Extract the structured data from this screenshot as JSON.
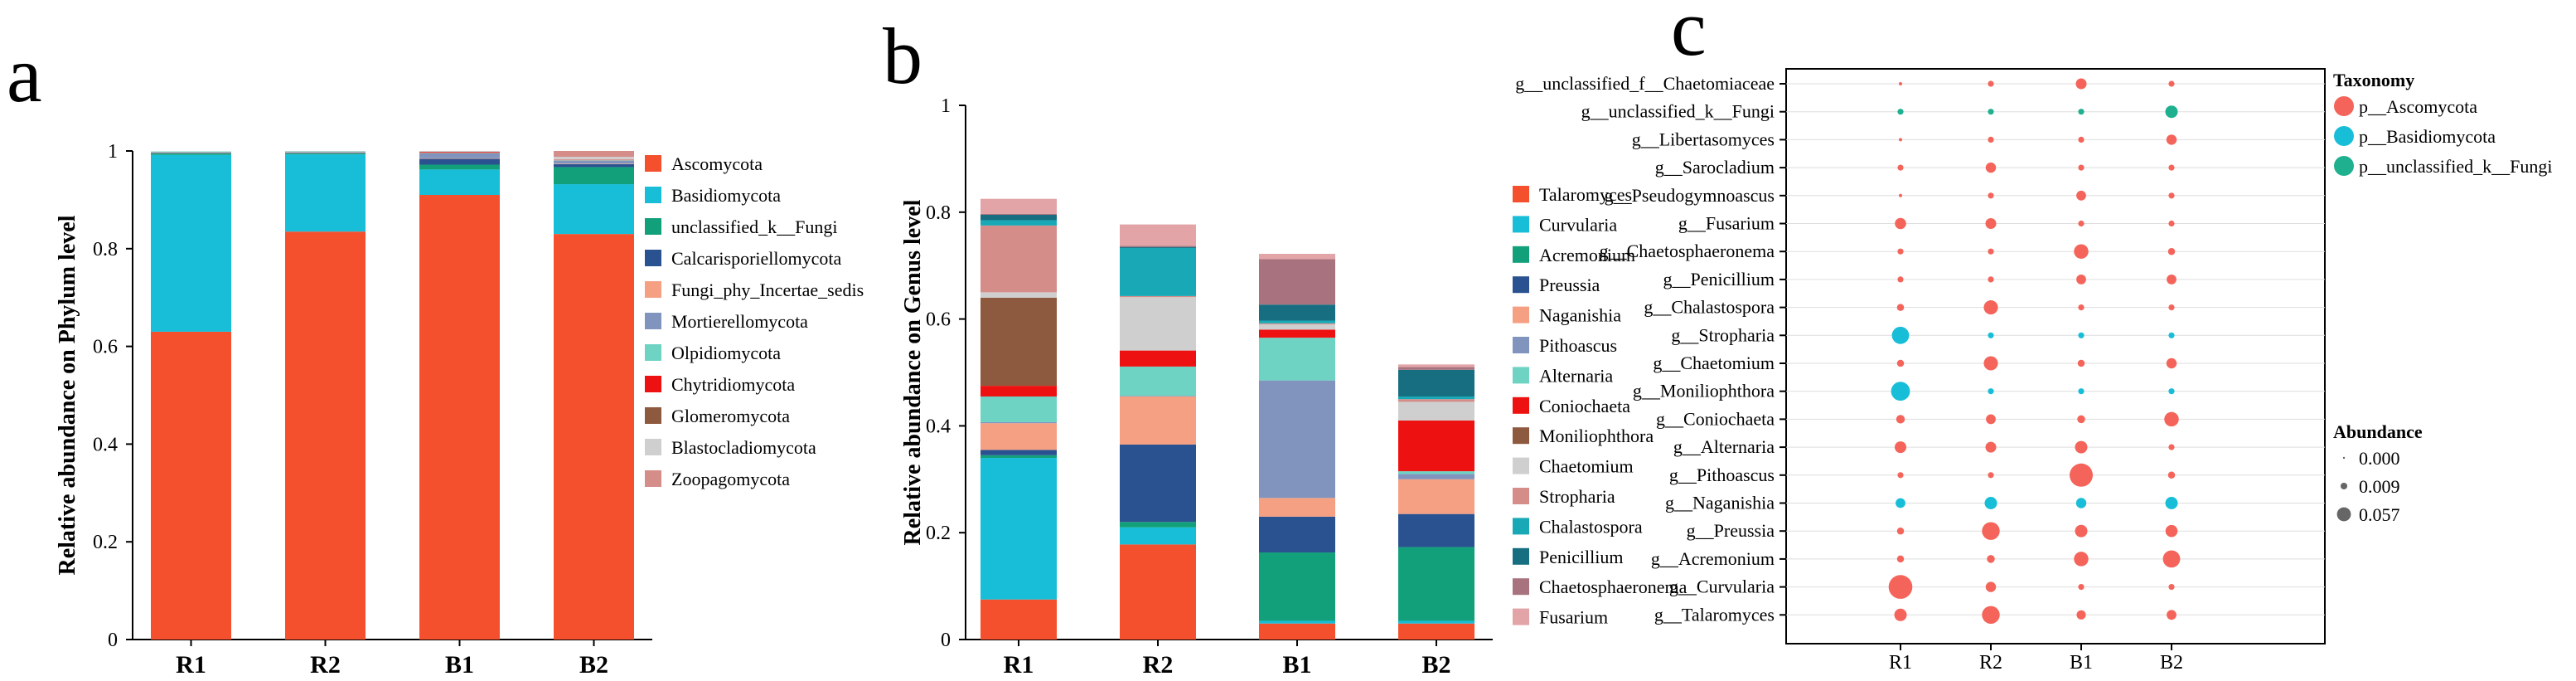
{
  "chart_data": [
    {
      "id": "a",
      "type": "bar",
      "stacked": true,
      "panel_label": "a",
      "ylabel": "Relative abundance on Phylum level",
      "ylim": [
        0,
        1
      ],
      "yticks": [
        "0",
        "0.2",
        "0.4",
        "0.6",
        "0.8",
        "1"
      ],
      "ytick_values": [
        0,
        0.2,
        0.4,
        0.6,
        0.8,
        1
      ],
      "categories": [
        "R1",
        "R2",
        "B1",
        "B2"
      ],
      "legend_position": "right",
      "series": [
        {
          "name": "Ascomycota",
          "color": "#F4502E",
          "values": [
            0.63,
            0.835,
            0.91,
            0.83
          ]
        },
        {
          "name": "Basidiomycota",
          "color": "#18BED8",
          "values": [
            0.362,
            0.158,
            0.052,
            0.102
          ]
        },
        {
          "name": "unclassified_k__Fungi",
          "color": "#12A07A",
          "values": [
            0.003,
            0.002,
            0.01,
            0.035
          ]
        },
        {
          "name": "Calcarisporiellomycota",
          "color": "#2A5290",
          "values": [
            0.001,
            0.001,
            0.012,
            0.006
          ]
        },
        {
          "name": "Fungi_phy_Incertae_sedis",
          "color": "#F6A083",
          "values": [
            0.001,
            0.001,
            0.001,
            0.001
          ]
        },
        {
          "name": "Mortierellomycota",
          "color": "#8094BD",
          "values": [
            0.001,
            0.001,
            0.01,
            0.006
          ]
        },
        {
          "name": "Olpidiomycota",
          "color": "#6ED3C3",
          "values": [
            0.001,
            0.001,
            0.001,
            0.001
          ]
        },
        {
          "name": "Chytridiomycota",
          "color": "#EE1111",
          "values": [
            0.0,
            0.0,
            0.002,
            0.001
          ]
        },
        {
          "name": "Glomeromycota",
          "color": "#8E5A3F",
          "values": [
            0.0,
            0.0,
            0.0,
            0.0
          ]
        },
        {
          "name": "Blastocladiomycota",
          "color": "#CFCFCF",
          "values": [
            0.0,
            0.001,
            0.002,
            0.006
          ]
        },
        {
          "name": "Zoopagomycota",
          "color": "#D58D8A",
          "values": [
            0.0,
            0.0,
            0.0,
            0.012
          ]
        }
      ]
    },
    {
      "id": "b",
      "type": "bar",
      "stacked": true,
      "panel_label": "b",
      "ylabel": "Relative abundance on Genus level",
      "ylim": [
        0,
        1
      ],
      "yticks": [
        "0",
        "0.2",
        "0.4",
        "0.6",
        "0.8",
        "1"
      ],
      "ytick_values": [
        0,
        0.2,
        0.4,
        0.6,
        0.8,
        1
      ],
      "categories": [
        "R1",
        "R2",
        "B1",
        "B2"
      ],
      "legend_position": "right",
      "series": [
        {
          "name": "Talaromyces",
          "color": "#F4502E",
          "values": [
            0.075,
            0.178,
            0.03,
            0.03
          ]
        },
        {
          "name": "Curvularia",
          "color": "#18BED8",
          "values": [
            0.265,
            0.032,
            0.005,
            0.005
          ]
        },
        {
          "name": "Acremonium",
          "color": "#12A07A",
          "values": [
            0.005,
            0.01,
            0.128,
            0.138
          ]
        },
        {
          "name": "Preussia",
          "color": "#2A5290",
          "values": [
            0.01,
            0.145,
            0.067,
            0.062
          ]
        },
        {
          "name": "Naganishia",
          "color": "#F6A083",
          "values": [
            0.05,
            0.09,
            0.035,
            0.065
          ]
        },
        {
          "name": "Pithoascus",
          "color": "#8094BD",
          "values": [
            0.002,
            0.001,
            0.22,
            0.01
          ]
        },
        {
          "name": "Alternaria",
          "color": "#6ED3C3",
          "values": [
            0.048,
            0.055,
            0.08,
            0.005
          ]
        },
        {
          "name": "Coniochaeta",
          "color": "#EE1111",
          "values": [
            0.02,
            0.03,
            0.015,
            0.095
          ]
        },
        {
          "name": "Moniliophthora",
          "color": "#8E5A3F",
          "values": [
            0.165,
            0.0,
            0.0,
            0.0
          ]
        },
        {
          "name": "Chaetomium",
          "color": "#CFCFCF",
          "values": [
            0.01,
            0.1,
            0.01,
            0.035
          ]
        },
        {
          "name": "Stropharia",
          "color": "#D58D8A",
          "values": [
            0.125,
            0.002,
            0.002,
            0.005
          ]
        },
        {
          "name": "Chalastospora",
          "color": "#19A9B6",
          "values": [
            0.01,
            0.09,
            0.005,
            0.005
          ]
        },
        {
          "name": "Penicillium",
          "color": "#176E80",
          "values": [
            0.01,
            0.002,
            0.03,
            0.05
          ]
        },
        {
          "name": "Chaetosphaeronema",
          "color": "#A8737E",
          "values": [
            0.002,
            0.002,
            0.085,
            0.005
          ]
        },
        {
          "name": "Fusarium",
          "color": "#E3A4A8",
          "values": [
            0.028,
            0.04,
            0.01,
            0.005
          ]
        }
      ]
    },
    {
      "id": "c",
      "type": "scatter",
      "subtype": "bubble",
      "panel_label": "c",
      "categories": [
        "R1",
        "R2",
        "B1",
        "B2"
      ],
      "genera": [
        "g__unclassified_f__Chaetomiaceae",
        "g__unclassified_k__Fungi",
        "g__Libertasomyces",
        "g__Sarocladium",
        "g__Pseudogymnoascus",
        "g__Fusarium",
        "g__Chaetosphaeronema",
        "g__Penicillium",
        "g__Chalastospora",
        "g__Stropharia",
        "g__Chaetomium",
        "g__Moniliophthora",
        "g__Coniochaeta",
        "g__Alternaria",
        "g__Pithoascus",
        "g__Naganishia",
        "g__Preussia",
        "g__Acremonium",
        "g__Curvularia",
        "g__Talaromyces"
      ],
      "taxonomy": [
        "p__Ascomycota",
        "p__unclassified_k__Fungi",
        "p__Ascomycota",
        "p__Ascomycota",
        "p__Ascomycota",
        "p__Ascomycota",
        "p__Ascomycota",
        "p__Ascomycota",
        "p__Ascomycota",
        "p__Basidiomycota",
        "p__Ascomycota",
        "p__Basidiomycota",
        "p__Ascomycota",
        "p__Ascomycota",
        "p__Ascomycota",
        "p__Basidiomycota",
        "p__Ascomycota",
        "p__Ascomycota",
        "p__Ascomycota",
        "p__Ascomycota"
      ],
      "abundance": [
        [
          0.0,
          0.001,
          0.008,
          0.001
        ],
        [
          0.001,
          0.001,
          0.001,
          0.012
        ],
        [
          0.0,
          0.001,
          0.001,
          0.007
        ],
        [
          0.001,
          0.007,
          0.001,
          0.001
        ],
        [
          0.0,
          0.001,
          0.006,
          0.001
        ],
        [
          0.009,
          0.008,
          0.001,
          0.001
        ],
        [
          0.001,
          0.001,
          0.018,
          0.002
        ],
        [
          0.001,
          0.001,
          0.006,
          0.006
        ],
        [
          0.002,
          0.017,
          0.001,
          0.001
        ],
        [
          0.028,
          0.001,
          0.001,
          0.001
        ],
        [
          0.002,
          0.017,
          0.002,
          0.007
        ],
        [
          0.035,
          0.001,
          0.001,
          0.001
        ],
        [
          0.004,
          0.006,
          0.003,
          0.018
        ],
        [
          0.01,
          0.008,
          0.012,
          0.001
        ],
        [
          0.001,
          0.001,
          0.057,
          0.002
        ],
        [
          0.006,
          0.012,
          0.007,
          0.012
        ],
        [
          0.002,
          0.03,
          0.012,
          0.011
        ],
        [
          0.002,
          0.003,
          0.018,
          0.028
        ],
        [
          0.06,
          0.007,
          0.001,
          0.001
        ],
        [
          0.012,
          0.03,
          0.005,
          0.006
        ]
      ],
      "legend": {
        "taxonomy_title": "Taxonomy",
        "taxonomy": [
          {
            "name": "p__Ascomycota",
            "color": "#F4645A"
          },
          {
            "name": "p__Basidiomycota",
            "color": "#18BED8"
          },
          {
            "name": "p__unclassified_k__Fungi",
            "color": "#1FB08F"
          }
        ],
        "abundance_title": "Abundance",
        "abundance_labels": [
          "0.000",
          "0.009",
          "0.057"
        ],
        "abundance_values": [
          0.0,
          0.009,
          0.057
        ]
      }
    }
  ]
}
